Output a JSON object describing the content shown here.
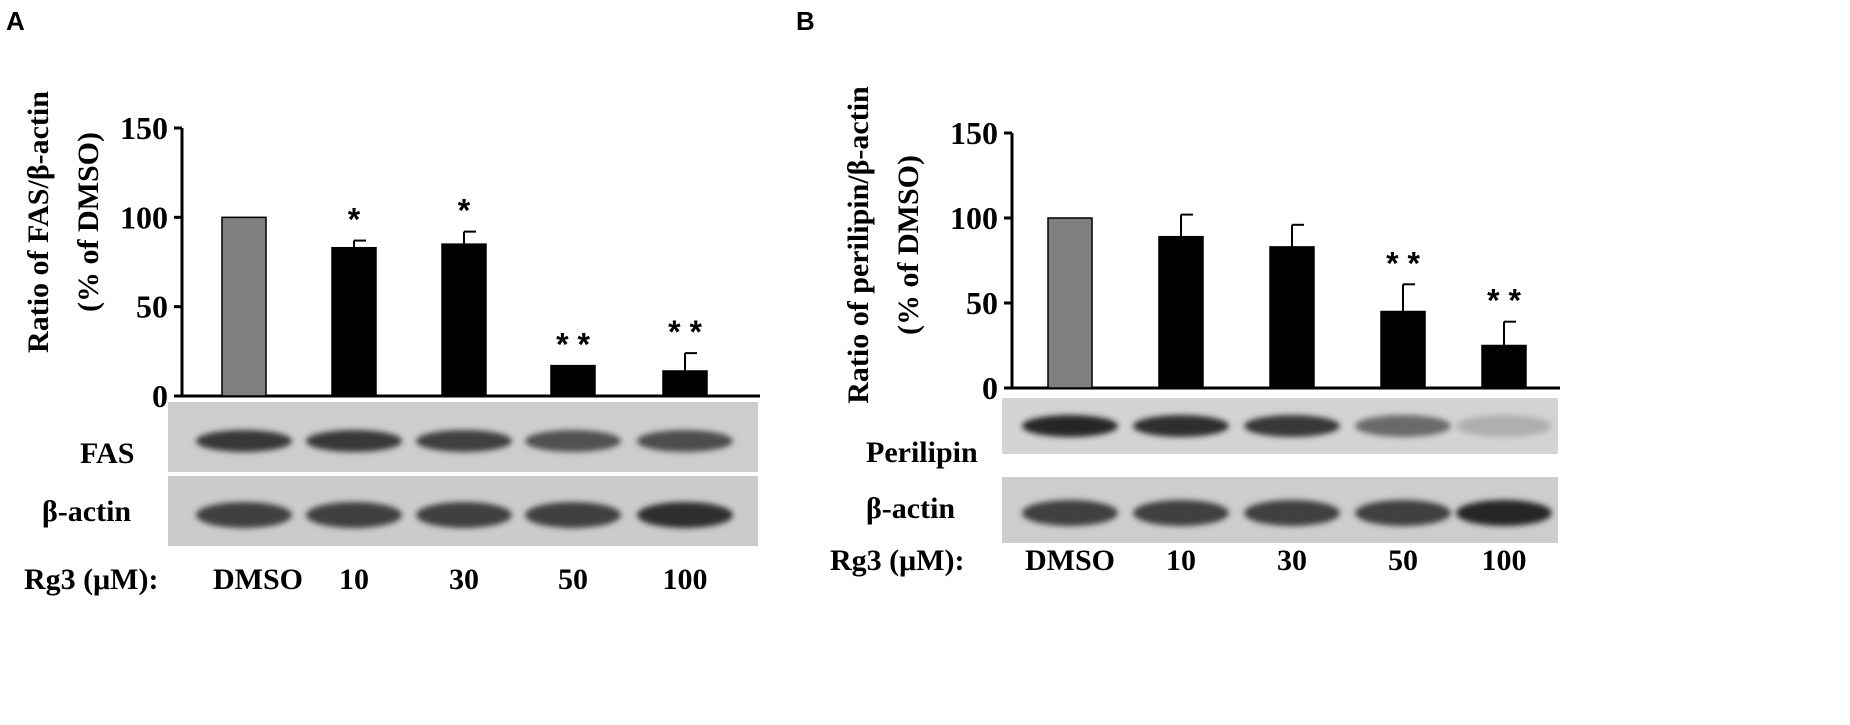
{
  "chart_data": [
    {
      "type": "bar",
      "panel_label": "A",
      "title": "",
      "xlabel": "",
      "ylabel_line1": "Ratio of FAS/β-actin",
      "ylabel_line2": "(% of DMSO)",
      "ylim": [
        0,
        150
      ],
      "yticks": [
        "0",
        "50",
        "100",
        "150"
      ],
      "grid": false,
      "categories": [
        "DMSO",
        "10",
        "30",
        "50",
        "100"
      ],
      "values": [
        100,
        83,
        85,
        17,
        14
      ],
      "errors": [
        0,
        4,
        7,
        0,
        10
      ],
      "significance": [
        "",
        "*",
        "*",
        "* *",
        "* *"
      ],
      "bar_colors": [
        "#808080",
        "#000000",
        "#000000",
        "#000000",
        "#000000"
      ],
      "blot_labels": [
        "FAS",
        "β-actin"
      ],
      "treatment_label": "Rg3 (μM):"
    },
    {
      "type": "bar",
      "panel_label": "B",
      "title": "",
      "xlabel": "",
      "ylabel_line1": "Ratio of perilipin/β-actin",
      "ylabel_line2": "(% of DMSO)",
      "ylim": [
        0,
        150
      ],
      "yticks": [
        "0",
        "50",
        "100",
        "150"
      ],
      "grid": false,
      "categories": [
        "DMSO",
        "10",
        "30",
        "50",
        "100"
      ],
      "values": [
        100,
        89,
        83,
        45,
        25
      ],
      "errors": [
        0,
        13,
        13,
        16,
        14
      ],
      "significance": [
        "",
        "",
        "",
        "* *",
        "* *"
      ],
      "bar_colors": [
        "#808080",
        "#000000",
        "#000000",
        "#000000",
        "#000000"
      ],
      "blot_labels": [
        "Perilipin",
        "β-actin"
      ],
      "treatment_label": "Rg3 (μM):"
    }
  ]
}
